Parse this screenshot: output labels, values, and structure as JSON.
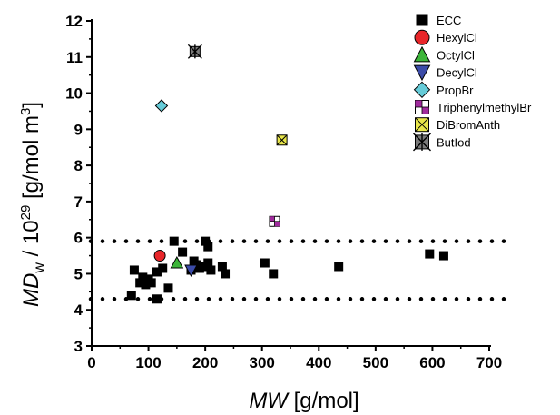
{
  "chart_data": {
    "type": "scatter",
    "xlabel": {
      "italic": "MW",
      "rest": " [g/mol]"
    },
    "ylabel": {
      "italic": "MD",
      "sub": "w",
      "mid": " / 10",
      "sup": "29",
      "rest": " [g/mol m",
      "sup2": "3",
      "end": "]"
    },
    "xlim": [
      0,
      700
    ],
    "ylim": [
      3,
      12
    ],
    "xticks": [
      "0",
      "100",
      "200",
      "300",
      "400",
      "500",
      "600",
      "700"
    ],
    "yticks": [
      "3",
      "4",
      "5",
      "6",
      "7",
      "8",
      "9",
      "10",
      "11",
      "12"
    ],
    "reference_lines": [
      {
        "y": 5.9,
        "style": "dotted"
      },
      {
        "y": 4.3,
        "style": "dotted"
      }
    ],
    "legend_position": "top-right",
    "series": [
      {
        "name": "ECC",
        "marker": "square",
        "color": "#000000",
        "points": [
          [
            70,
            4.4
          ],
          [
            75,
            5.1
          ],
          [
            85,
            4.75
          ],
          [
            90,
            4.9
          ],
          [
            95,
            4.7
          ],
          [
            100,
            4.85
          ],
          [
            105,
            4.75
          ],
          [
            115,
            4.3
          ],
          [
            115,
            5.05
          ],
          [
            125,
            5.15
          ],
          [
            135,
            4.6
          ],
          [
            145,
            5.9
          ],
          [
            160,
            5.6
          ],
          [
            175,
            5.1
          ],
          [
            180,
            5.35
          ],
          [
            185,
            5.25
          ],
          [
            190,
            5.15
          ],
          [
            200,
            5.2
          ],
          [
            200,
            5.9
          ],
          [
            205,
            5.75
          ],
          [
            205,
            5.3
          ],
          [
            210,
            5.1
          ],
          [
            230,
            5.2
          ],
          [
            235,
            5.0
          ],
          [
            305,
            5.3
          ],
          [
            320,
            5.0
          ],
          [
            435,
            5.2
          ],
          [
            595,
            5.55
          ],
          [
            620,
            5.5
          ]
        ]
      },
      {
        "name": "HexylCl",
        "marker": "circle",
        "color": "#e8262a",
        "points": [
          [
            120,
            5.5
          ]
        ]
      },
      {
        "name": "OctylCl",
        "marker": "triangle-up",
        "color": "#3cb539",
        "points": [
          [
            150,
            5.3
          ]
        ]
      },
      {
        "name": "DecylCl",
        "marker": "triangle-down",
        "color": "#3b4ba8",
        "points": [
          [
            175,
            5.1
          ]
        ]
      },
      {
        "name": "PropBr",
        "marker": "diamond",
        "color": "#66ccd9",
        "points": [
          [
            123,
            9.65
          ]
        ]
      },
      {
        "name": "TriphenylmethylBr",
        "marker": "square-quartered",
        "color": "#a02b9d",
        "points": [
          [
            322,
            6.45
          ]
        ]
      },
      {
        "name": "DiBromAnth",
        "marker": "square-x",
        "color": "#e8e64a",
        "points": [
          [
            335,
            8.7
          ]
        ]
      },
      {
        "name": "ButIod",
        "marker": "square-asterisk",
        "color": "#7a7a7a",
        "points": [
          [
            182,
            11.15
          ]
        ]
      }
    ]
  }
}
